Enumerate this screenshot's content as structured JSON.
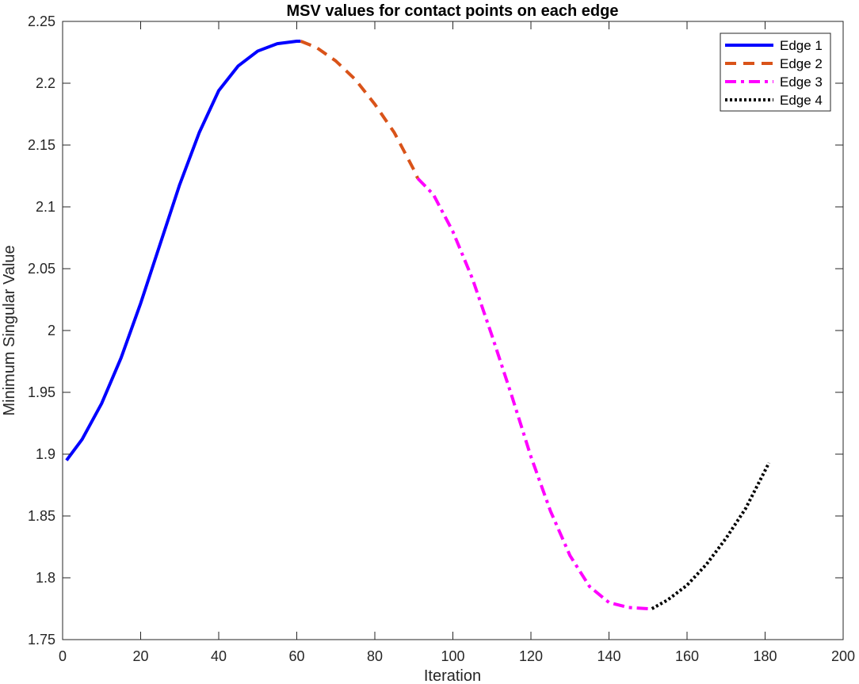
{
  "chart_data": {
    "type": "line",
    "title": "MSV values for contact points on each edge",
    "xlabel": "Iteration",
    "ylabel": "Minimum Singular Value",
    "xlim": [
      0,
      200
    ],
    "ylim": [
      1.75,
      2.25
    ],
    "xticks": [
      0,
      20,
      40,
      60,
      80,
      100,
      120,
      140,
      160,
      180,
      200
    ],
    "yticks": [
      1.75,
      1.8,
      1.85,
      1.9,
      1.95,
      2,
      2.05,
      2.1,
      2.15,
      2.2,
      2.25
    ],
    "xtick_labels": [
      "0",
      "20",
      "40",
      "60",
      "80",
      "100",
      "120",
      "140",
      "160",
      "180",
      "200"
    ],
    "ytick_labels": [
      "1.75",
      "1.8",
      "1.85",
      "1.9",
      "1.95",
      "2",
      "2.05",
      "2.1",
      "2.15",
      "2.2",
      "2.25"
    ],
    "grid": false,
    "legend_position": "top-right",
    "series": [
      {
        "name": "Edge 1",
        "color": "#0000ff",
        "line_style": "solid",
        "x": [
          1,
          5,
          10,
          15,
          20,
          25,
          30,
          35,
          40,
          45,
          50,
          55,
          60,
          61
        ],
        "y": [
          1.895,
          1.912,
          1.941,
          1.978,
          2.022,
          2.07,
          2.118,
          2.16,
          2.194,
          2.214,
          2.226,
          2.232,
          2.234,
          2.234
        ]
      },
      {
        "name": "Edge 2",
        "color": "#d95319",
        "line_style": "dashed",
        "x": [
          61,
          65,
          70,
          75,
          80,
          85,
          90,
          91
        ],
        "y": [
          2.234,
          2.229,
          2.218,
          2.203,
          2.183,
          2.16,
          2.13,
          2.123
        ]
      },
      {
        "name": "Edge 3",
        "color": "#ff00ff",
        "line_style": "dashdot",
        "x": [
          91,
          95,
          100,
          105,
          110,
          115,
          120,
          125,
          130,
          135,
          140,
          145,
          150,
          151
        ],
        "y": [
          2.123,
          2.11,
          2.08,
          2.042,
          1.996,
          1.948,
          1.898,
          1.854,
          1.818,
          1.793,
          1.78,
          1.776,
          1.775,
          1.775
        ]
      },
      {
        "name": "Edge 4",
        "color": "#000000",
        "line_style": "dotted",
        "x": [
          151,
          155,
          160,
          165,
          170,
          175,
          181
        ],
        "y": [
          1.775,
          1.782,
          1.794,
          1.811,
          1.832,
          1.856,
          1.893
        ]
      }
    ]
  }
}
